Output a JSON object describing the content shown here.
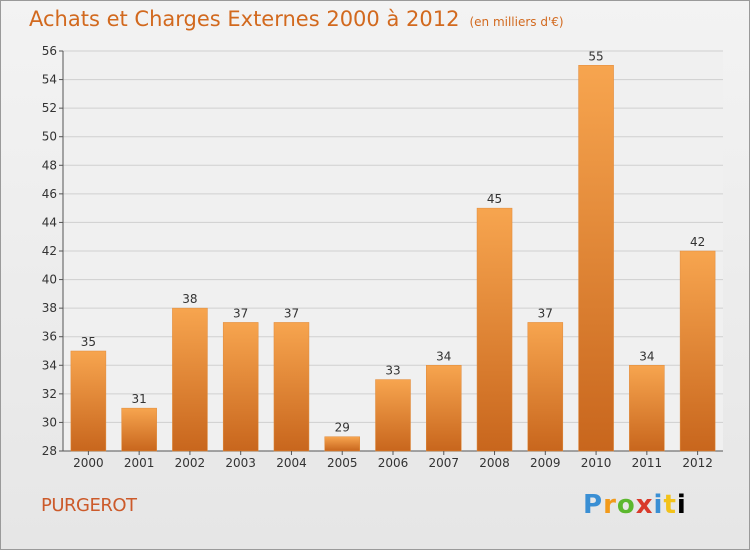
{
  "title": "Achats et Charges Externes 2000 à 2012",
  "unit": "(en milliers d'€)",
  "town": "PURGEROT",
  "brand": [
    "P",
    "r",
    "o",
    "x",
    "i",
    "t",
    "i"
  ],
  "colors": {
    "bar_light": "#f7a54f",
    "bar_dark": "#c8661d",
    "grid": "#cfcfcf",
    "title": "#d2691e"
  },
  "chart_data": {
    "type": "bar",
    "categories": [
      "2000",
      "2001",
      "2002",
      "2003",
      "2004",
      "2005",
      "2006",
      "2007",
      "2008",
      "2009",
      "2010",
      "2011",
      "2012"
    ],
    "values": [
      35,
      31,
      38,
      37,
      37,
      29,
      33,
      34,
      45,
      37,
      55,
      34,
      42
    ],
    "ylim": [
      28,
      56
    ],
    "yticks": [
      28,
      30,
      32,
      34,
      36,
      38,
      40,
      42,
      44,
      46,
      48,
      50,
      52,
      54,
      56
    ],
    "grid": true,
    "title": "Achats et Charges Externes 2000 à 2012",
    "xlabel": "",
    "ylabel": ""
  }
}
